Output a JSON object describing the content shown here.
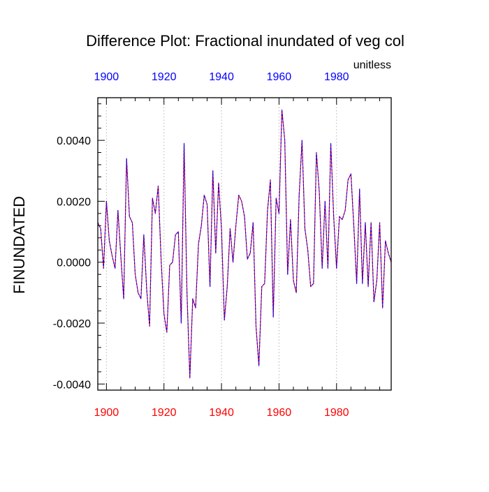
{
  "chart_data": {
    "type": "line",
    "title": "Difference Plot: Fractional inundated of veg col",
    "units_label": "unitless",
    "ylabel": "FINUNDATED",
    "xlabel": "",
    "xlim": [
      1897,
      1999
    ],
    "ylim": [
      -0.0042,
      0.0054
    ],
    "x_ticks": [
      1900,
      1920,
      1940,
      1960,
      1980
    ],
    "x_tick_labels": [
      "1900",
      "1920",
      "1940",
      "1960",
      "1980"
    ],
    "y_ticks": [
      -0.004,
      -0.002,
      0.0,
      0.002,
      0.004
    ],
    "y_tick_labels": [
      "-0.0040",
      "-0.0020",
      "0.0000",
      "0.0020",
      "0.0040"
    ],
    "grid": "vertical-dotted",
    "colors": {
      "bottom_tick_labels": "#ff0000",
      "top_tick_labels": "#0000ff",
      "series_red": "#ff0000",
      "series_blue": "#0000ff"
    },
    "series": [
      {
        "name": "difference",
        "x": [
          1897,
          1898,
          1899,
          1900,
          1901,
          1902,
          1903,
          1904,
          1905,
          1906,
          1907,
          1908,
          1909,
          1910,
          1911,
          1912,
          1913,
          1914,
          1915,
          1916,
          1917,
          1918,
          1919,
          1920,
          1921,
          1922,
          1923,
          1924,
          1925,
          1926,
          1927,
          1928,
          1929,
          1930,
          1931,
          1932,
          1933,
          1934,
          1935,
          1936,
          1937,
          1938,
          1939,
          1940,
          1941,
          1942,
          1943,
          1944,
          1945,
          1946,
          1947,
          1948,
          1949,
          1950,
          1951,
          1952,
          1953,
          1954,
          1955,
          1956,
          1957,
          1958,
          1959,
          1960,
          1961,
          1962,
          1963,
          1964,
          1965,
          1966,
          1967,
          1968,
          1969,
          1970,
          1971,
          1972,
          1973,
          1974,
          1975,
          1976,
          1977,
          1978,
          1979,
          1980,
          1981,
          1982,
          1983,
          1984,
          1985,
          1986,
          1987,
          1988,
          1989,
          1990,
          1991,
          1992,
          1993,
          1994,
          1995,
          1996,
          1997,
          1998,
          1999
        ],
        "values": [
          0.0013,
          0.0011,
          -0.0002,
          0.002,
          0.0007,
          0.0002,
          -0.0002,
          0.0017,
          0.0002,
          -0.0012,
          0.0034,
          0.0015,
          0.0013,
          -0.0004,
          -0.001,
          -0.0012,
          0.0009,
          -0.0009,
          -0.0021,
          0.0021,
          0.0016,
          0.0025,
          0.0001,
          -0.0017,
          -0.0023,
          -0.0001,
          0.0,
          0.0009,
          0.001,
          -0.002,
          0.0039,
          -0.001,
          -0.0038,
          -0.0012,
          -0.0015,
          0.0006,
          0.0012,
          0.0022,
          0.0019,
          -0.0008,
          0.003,
          0.0003,
          0.0026,
          0.0011,
          -0.0019,
          -0.0008,
          0.0011,
          0.0,
          0.0012,
          0.0022,
          0.002,
          0.0015,
          0.0001,
          0.0003,
          0.0013,
          -0.0021,
          -0.0034,
          -0.0008,
          -0.0007,
          0.0017,
          0.0027,
          -0.0018,
          0.0021,
          0.0016,
          0.005,
          0.004,
          -0.0004,
          0.0014,
          -0.0006,
          -0.001,
          0.0022,
          0.004,
          0.0011,
          0.0004,
          -0.0008,
          -0.0007,
          0.0036,
          0.0023,
          -0.0002,
          0.002,
          -0.0002,
          0.0039,
          0.0015,
          -0.0002,
          0.0015,
          0.0014,
          0.0017,
          0.0027,
          0.0029,
          0.0012,
          -0.0007,
          0.0024,
          -0.0007,
          0.0013,
          -0.0008,
          0.0013,
          -0.0013,
          -0.0006,
          0.0013,
          -0.0015,
          0.0007,
          0.0003,
          0.0
        ]
      }
    ]
  }
}
